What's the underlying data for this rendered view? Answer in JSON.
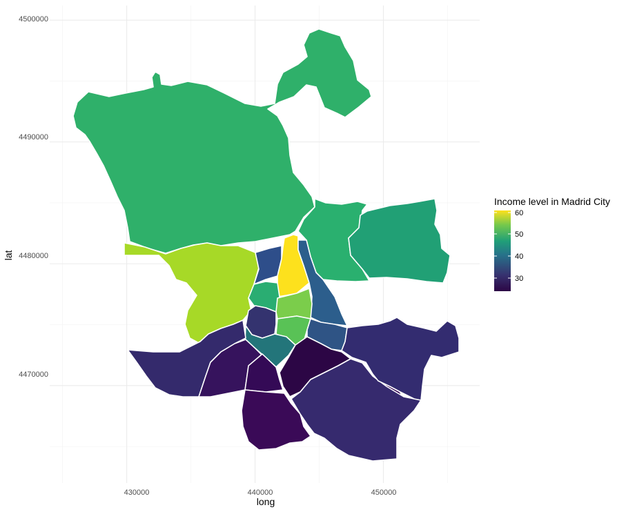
{
  "chart_data": {
    "type": "choropleth",
    "title": "",
    "xlabel": "long",
    "ylabel": "lat",
    "xlim": [
      424000,
      457500
    ],
    "ylim": [
      4462000,
      4501200
    ],
    "x_ticks": [
      430000,
      440000,
      450000
    ],
    "y_ticks": [
      4470000,
      4480000,
      4490000,
      4500000
    ],
    "x_tick_labels": [
      "430000",
      "440000",
      "450000"
    ],
    "y_tick_labels": [
      "4470000",
      "4480000",
      "4490000",
      "4500000"
    ],
    "grid": true,
    "legend": {
      "title": "Income level in Madrid City",
      "position": "right",
      "min": 23,
      "max": 61,
      "ticks": [
        30,
        40,
        50,
        60
      ],
      "tick_labels": [
        "30",
        "40",
        "50",
        "60"
      ],
      "colormap": "viridis"
    },
    "regions": [
      {
        "id": "fuencarral-el-pardo",
        "value": 47,
        "color": "#2fb06a"
      },
      {
        "id": "hortaleza",
        "value": 46,
        "color": "#2ab06f"
      },
      {
        "id": "barajas",
        "value": 45,
        "color": "#21a075"
      },
      {
        "id": "moncloa-aravaca",
        "value": 56,
        "color": "#a7d927"
      },
      {
        "id": "tetuan",
        "value": 36,
        "color": "#2e4e8a"
      },
      {
        "id": "chamartin",
        "value": 61,
        "color": "#fde11d"
      },
      {
        "id": "ciudad-lineal",
        "value": 38,
        "color": "#2c5e8c"
      },
      {
        "id": "chamberi",
        "value": 46,
        "color": "#2aad72"
      },
      {
        "id": "salamanca",
        "value": 54,
        "color": "#7bcd4b"
      },
      {
        "id": "centro",
        "value": 32,
        "color": "#34336f"
      },
      {
        "id": "retiro",
        "value": 52,
        "color": "#59c256"
      },
      {
        "id": "san-blas",
        "value": 37,
        "color": "#2f5485"
      },
      {
        "id": "arganzuela",
        "value": 41,
        "color": "#23757a"
      },
      {
        "id": "moratalaz",
        "value": 25,
        "color": "#2c0645"
      },
      {
        "id": "latina",
        "value": 30,
        "color": "#342a6c"
      },
      {
        "id": "carabanchel",
        "value": 27,
        "color": "#36135d"
      },
      {
        "id": "usera",
        "value": 26,
        "color": "#340a56"
      },
      {
        "id": "puente-de-vallecas",
        "value": 25,
        "color": "#390d58"
      },
      {
        "id": "villaverde",
        "value": 25,
        "color": "#3a0a57"
      },
      {
        "id": "vicalvaro",
        "value": 31,
        "color": "#332c70"
      },
      {
        "id": "villa-de-vallecas",
        "value": 30,
        "color": "#362a6e"
      }
    ]
  }
}
